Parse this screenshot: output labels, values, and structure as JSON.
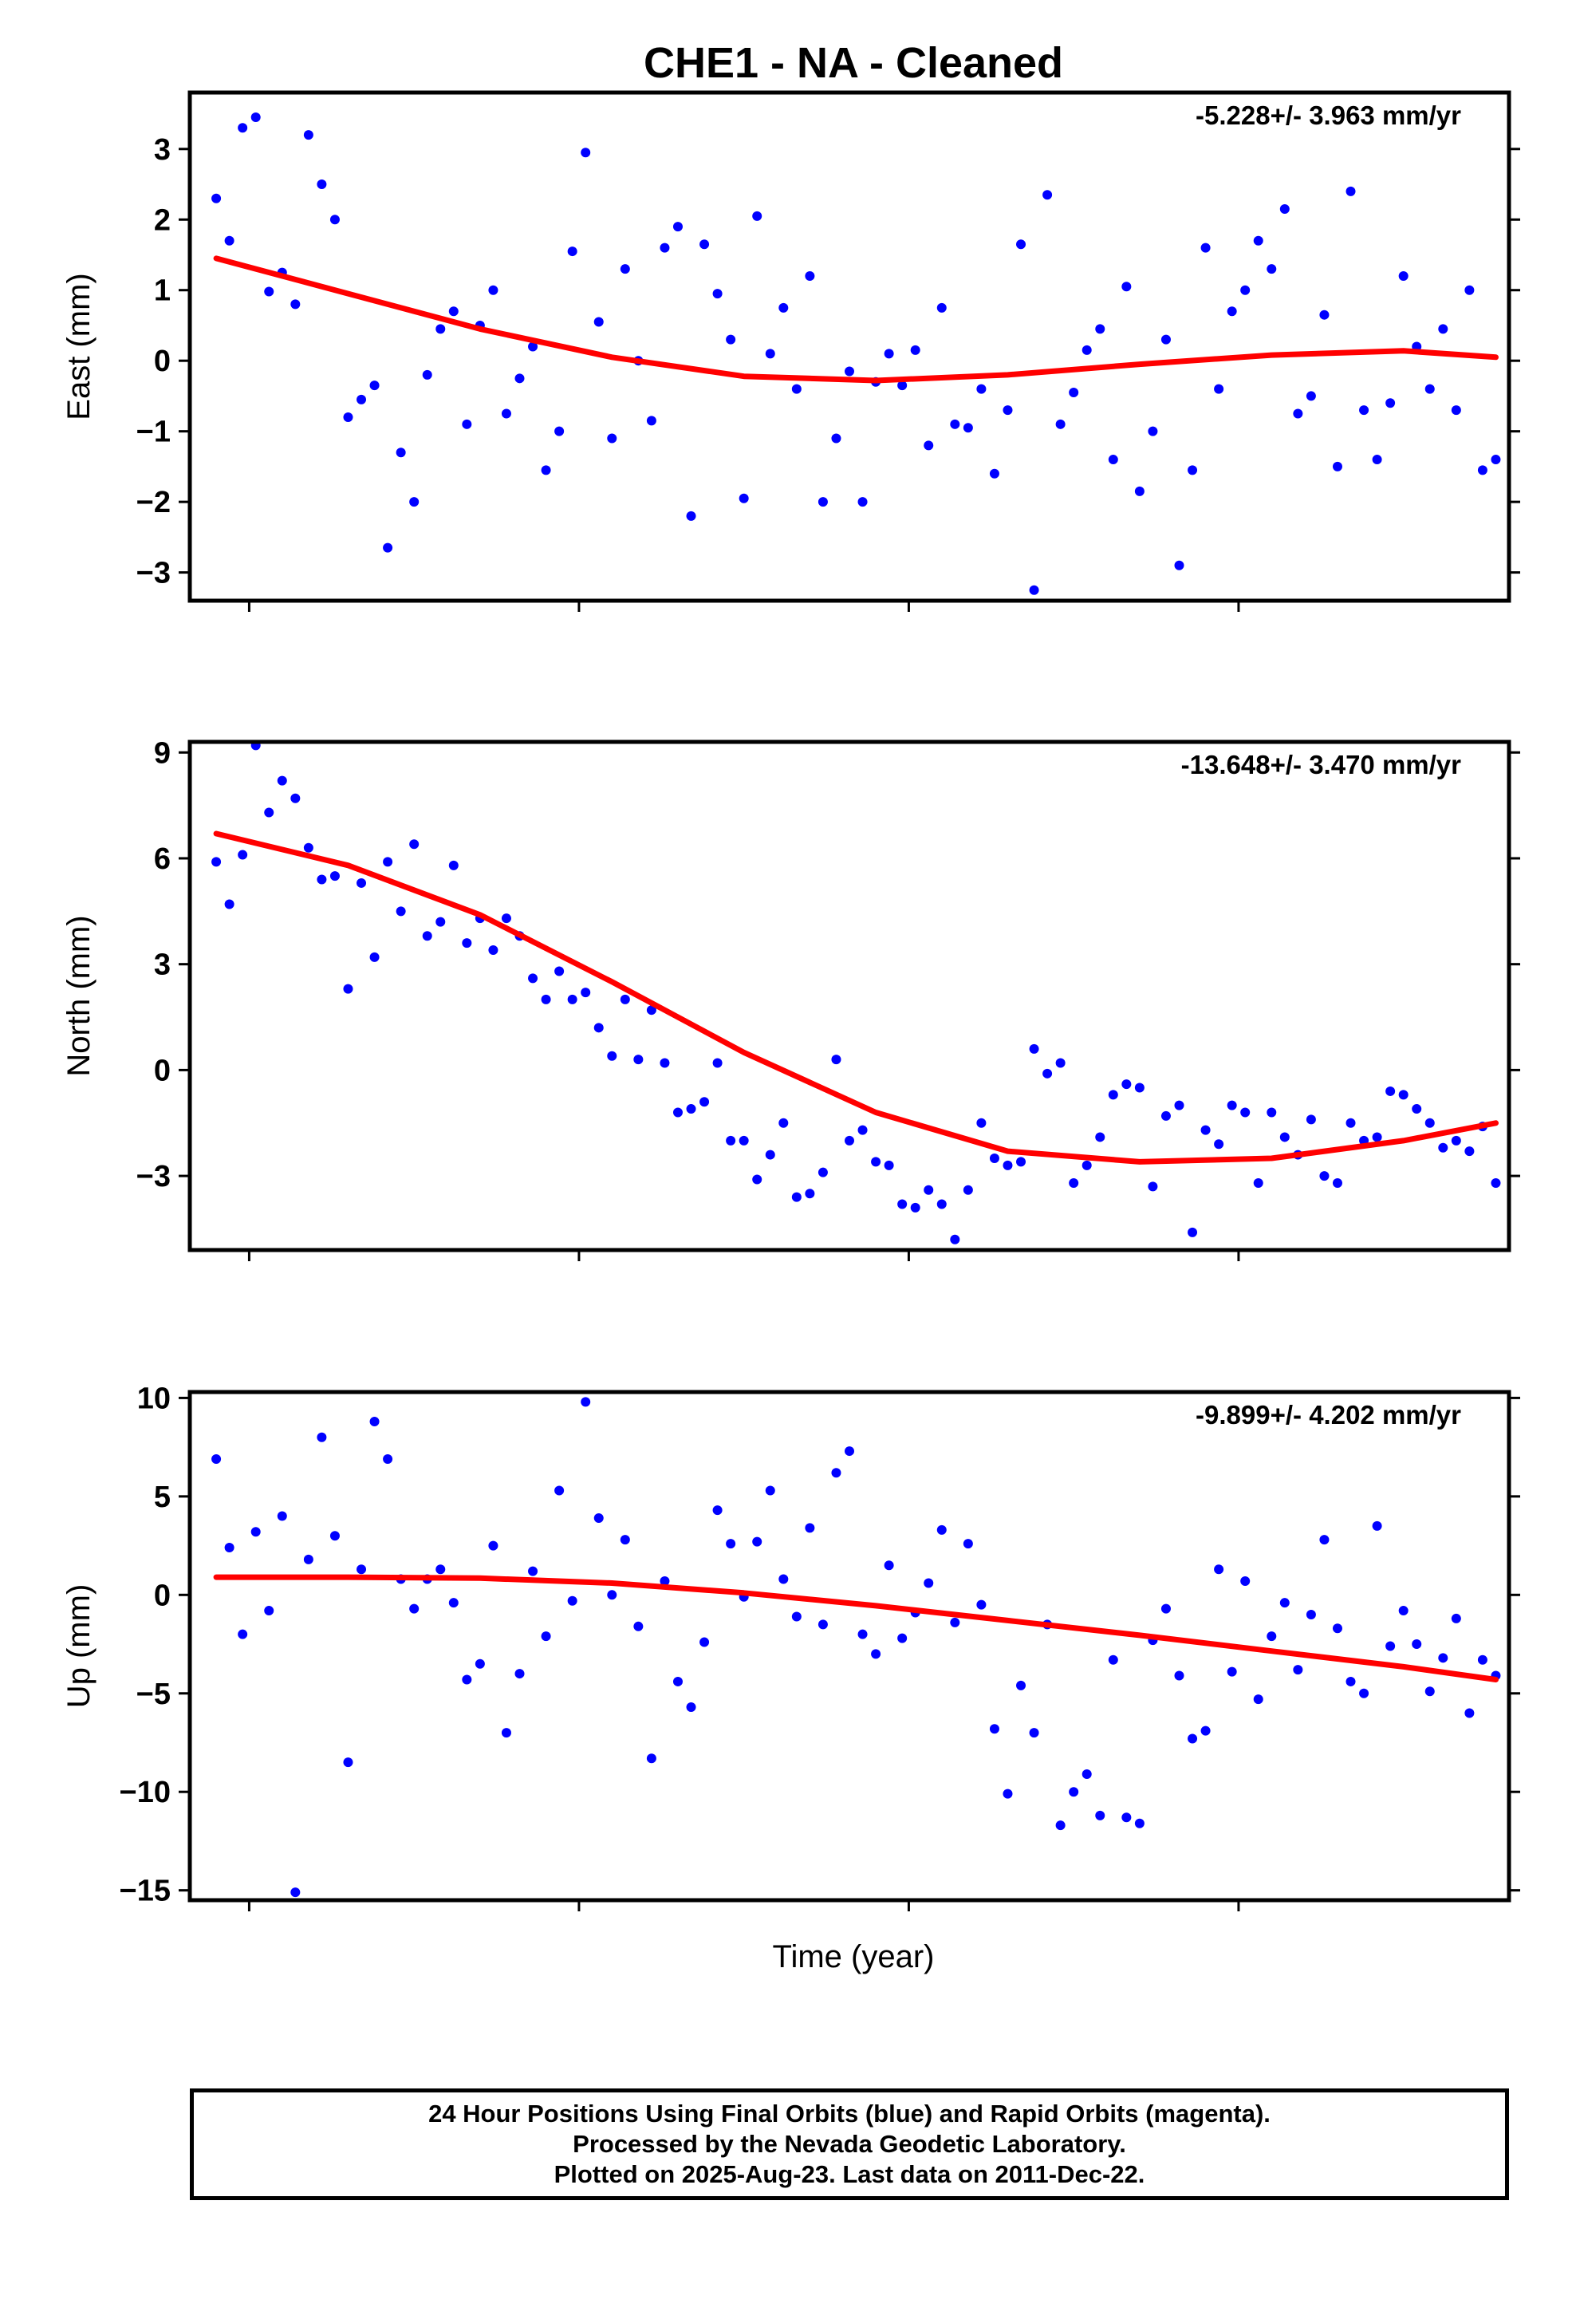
{
  "title": "CHE1  - NA - Cleaned",
  "xlabel": "Time (year)",
  "footer": {
    "line1": "24 Hour Positions Using Final Orbits (blue) and Rapid Orbits (magenta).",
    "line2": "Processed by the Nevada Geodetic Laboratory.",
    "line3": "Plotted on 2025-Aug-23. Last data on 2011-Dec-22."
  },
  "colors": {
    "points": "#0000ff",
    "fit": "#ff0000",
    "axes": "#000000"
  },
  "chart_data": [
    {
      "type": "scatter",
      "ylabel": "East (mm)",
      "rate": "-5.228+/- 3.963 mm/yr",
      "ylim": [
        -3.4,
        3.8
      ],
      "yticks": [
        -3,
        -2,
        -1,
        0,
        1,
        2,
        3
      ],
      "ytick_labels": [
        "−3",
        "−2",
        "−1",
        "0",
        "1",
        "2",
        "3"
      ],
      "x": [
        0.02,
        0.03,
        0.04,
        0.05,
        0.06,
        0.07,
        0.08,
        0.09,
        0.1,
        0.11,
        0.12,
        0.13,
        0.14,
        0.15,
        0.16,
        0.17,
        0.18,
        0.19,
        0.2,
        0.21,
        0.22,
        0.23,
        0.24,
        0.25,
        0.26,
        0.27,
        0.28,
        0.29,
        0.3,
        0.31,
        0.32,
        0.33,
        0.34,
        0.35,
        0.36,
        0.37,
        0.38,
        0.39,
        0.4,
        0.41,
        0.42,
        0.43,
        0.44,
        0.45,
        0.46,
        0.47,
        0.48,
        0.49,
        0.5,
        0.51,
        0.52,
        0.53,
        0.54,
        0.55,
        0.56,
        0.57,
        0.58,
        0.59,
        0.6,
        0.61,
        0.62,
        0.63,
        0.64,
        0.65,
        0.66,
        0.67,
        0.68,
        0.69,
        0.7,
        0.71,
        0.72,
        0.73,
        0.74,
        0.75,
        0.76,
        0.77,
        0.78,
        0.79,
        0.8,
        0.81,
        0.82,
        0.83,
        0.84,
        0.85,
        0.86,
        0.87,
        0.88,
        0.89,
        0.9,
        0.91,
        0.92,
        0.93,
        0.94,
        0.95,
        0.96,
        0.97,
        0.98,
        0.99
      ],
      "values": [
        2.3,
        1.7,
        3.3,
        3.45,
        0.98,
        1.25,
        0.8,
        3.2,
        2.5,
        2.0,
        -0.8,
        -0.55,
        -0.35,
        -2.65,
        -1.3,
        -2.0,
        -0.2,
        0.45,
        0.7,
        -0.9,
        0.5,
        1.0,
        -0.75,
        -0.25,
        0.2,
        -1.55,
        -1.0,
        1.55,
        2.95,
        0.55,
        -1.1,
        1.3,
        0.0,
        -0.85,
        1.6,
        1.9,
        -2.2,
        1.65,
        0.95,
        0.3,
        -1.95,
        2.05,
        0.1,
        0.75,
        -0.4,
        1.2,
        -2.0,
        -1.1,
        -0.15,
        -2.0,
        -0.3,
        0.1,
        -0.35,
        0.15,
        -1.2,
        0.75,
        -0.9,
        -0.95,
        -0.4,
        -1.6,
        -0.7,
        1.65,
        -3.25,
        2.35,
        -0.9,
        -0.45,
        0.15,
        0.45,
        -1.4,
        1.05,
        -1.85,
        -1.0,
        0.3,
        -2.9,
        -1.55,
        1.6,
        -0.4,
        0.7,
        1.0,
        1.7,
        1.3,
        2.15,
        -0.75,
        -0.5,
        0.65,
        -1.5,
        2.4,
        -0.7,
        -1.4,
        -0.6,
        1.2,
        0.2,
        -0.4,
        0.45,
        -0.7,
        1.0,
        -1.55,
        -1.4
      ],
      "fit": {
        "x": [
          0.02,
          0.12,
          0.22,
          0.32,
          0.42,
          0.52,
          0.62,
          0.72,
          0.82,
          0.92,
          0.99
        ],
        "y": [
          1.45,
          0.95,
          0.45,
          0.05,
          -0.22,
          -0.28,
          -0.2,
          -0.05,
          0.08,
          0.14,
          0.05
        ]
      }
    },
    {
      "type": "scatter",
      "ylabel": "North (mm)",
      "rate": "-13.648+/- 3.470 mm/yr",
      "ylim": [
        -5.1,
        9.3
      ],
      "yticks": [
        -3,
        0,
        3,
        6,
        9
      ],
      "ytick_labels": [
        "−3",
        "0",
        "3",
        "6",
        "9"
      ],
      "x": [
        0.02,
        0.03,
        0.04,
        0.05,
        0.06,
        0.07,
        0.08,
        0.09,
        0.1,
        0.11,
        0.12,
        0.13,
        0.14,
        0.15,
        0.16,
        0.17,
        0.18,
        0.19,
        0.2,
        0.21,
        0.22,
        0.23,
        0.24,
        0.25,
        0.26,
        0.27,
        0.28,
        0.29,
        0.3,
        0.31,
        0.32,
        0.33,
        0.34,
        0.35,
        0.36,
        0.37,
        0.38,
        0.39,
        0.4,
        0.41,
        0.42,
        0.43,
        0.44,
        0.45,
        0.46,
        0.47,
        0.48,
        0.49,
        0.5,
        0.51,
        0.52,
        0.53,
        0.54,
        0.55,
        0.56,
        0.57,
        0.58,
        0.59,
        0.6,
        0.61,
        0.62,
        0.63,
        0.64,
        0.65,
        0.66,
        0.67,
        0.68,
        0.69,
        0.7,
        0.71,
        0.72,
        0.73,
        0.74,
        0.75,
        0.76,
        0.77,
        0.78,
        0.79,
        0.8,
        0.81,
        0.82,
        0.83,
        0.84,
        0.85,
        0.86,
        0.87,
        0.88,
        0.89,
        0.9,
        0.91,
        0.92,
        0.93,
        0.94,
        0.95,
        0.96,
        0.97,
        0.98,
        0.99
      ],
      "values": [
        5.9,
        4.7,
        6.1,
        9.2,
        7.3,
        8.2,
        7.7,
        6.3,
        5.4,
        5.5,
        2.3,
        5.3,
        3.2,
        5.9,
        4.5,
        6.4,
        3.8,
        4.2,
        5.8,
        3.6,
        4.3,
        3.4,
        4.3,
        3.8,
        2.6,
        2.0,
        2.8,
        2.0,
        2.2,
        1.2,
        0.4,
        2.0,
        0.3,
        1.7,
        0.2,
        -1.2,
        -1.1,
        -0.9,
        0.2,
        -2.0,
        -2.0,
        -3.1,
        -2.4,
        -1.5,
        -3.6,
        -3.5,
        -2.9,
        0.3,
        -2.0,
        -1.7,
        -2.6,
        -2.7,
        -3.8,
        -3.9,
        -3.4,
        -3.8,
        -4.8,
        -3.4,
        -1.5,
        -2.5,
        -2.7,
        -2.6,
        0.6,
        -0.1,
        0.2,
        -3.2,
        -2.7,
        -1.9,
        -0.7,
        -0.4,
        -0.5,
        -3.3,
        -1.3,
        -1.0,
        -4.6,
        -1.7,
        -2.1,
        -1.0,
        -1.2,
        -3.2,
        -1.2,
        -1.9,
        -2.4,
        -1.4,
        -3.0,
        -3.2,
        -1.5,
        -2.0,
        -1.9,
        -0.6,
        -0.7,
        -1.1,
        -1.5,
        -2.2,
        -2.0,
        -2.3,
        -1.6,
        -3.2
      ],
      "fit": {
        "x": [
          0.02,
          0.12,
          0.22,
          0.32,
          0.42,
          0.52,
          0.62,
          0.72,
          0.82,
          0.92,
          0.99
        ],
        "y": [
          6.7,
          5.8,
          4.4,
          2.5,
          0.5,
          -1.2,
          -2.3,
          -2.6,
          -2.5,
          -2.0,
          -1.5
        ]
      }
    },
    {
      "type": "scatter",
      "ylabel": "Up (mm)",
      "rate": "-9.899+/- 4.202 mm/yr",
      "ylim": [
        -15.5,
        10.3
      ],
      "yticks": [
        -15,
        -10,
        -5,
        0,
        5,
        10
      ],
      "ytick_labels": [
        "−15",
        "−10",
        "−5",
        "0",
        "5",
        "10"
      ],
      "x": [
        0.02,
        0.03,
        0.04,
        0.05,
        0.06,
        0.07,
        0.08,
        0.09,
        0.1,
        0.11,
        0.12,
        0.13,
        0.14,
        0.15,
        0.16,
        0.17,
        0.18,
        0.19,
        0.2,
        0.21,
        0.22,
        0.23,
        0.24,
        0.25,
        0.26,
        0.27,
        0.28,
        0.29,
        0.3,
        0.31,
        0.32,
        0.33,
        0.34,
        0.35,
        0.36,
        0.37,
        0.38,
        0.39,
        0.4,
        0.41,
        0.42,
        0.43,
        0.44,
        0.45,
        0.46,
        0.47,
        0.48,
        0.49,
        0.5,
        0.51,
        0.52,
        0.53,
        0.54,
        0.55,
        0.56,
        0.57,
        0.58,
        0.59,
        0.6,
        0.61,
        0.62,
        0.63,
        0.64,
        0.65,
        0.66,
        0.67,
        0.68,
        0.69,
        0.7,
        0.71,
        0.72,
        0.73,
        0.74,
        0.75,
        0.76,
        0.77,
        0.78,
        0.79,
        0.8,
        0.81,
        0.82,
        0.83,
        0.84,
        0.85,
        0.86,
        0.87,
        0.88,
        0.89,
        0.9,
        0.91,
        0.92,
        0.93,
        0.94,
        0.95,
        0.96,
        0.97,
        0.98,
        0.99
      ],
      "values": [
        6.9,
        2.4,
        -2.0,
        3.2,
        -0.8,
        4.0,
        -15.1,
        1.8,
        8.0,
        3.0,
        -8.5,
        1.3,
        8.8,
        6.9,
        0.8,
        -0.7,
        0.8,
        1.3,
        -0.4,
        -4.3,
        -3.5,
        2.5,
        -7.0,
        -4.0,
        1.2,
        -2.1,
        5.3,
        -0.3,
        9.8,
        3.9,
        0.0,
        2.8,
        -1.6,
        -8.3,
        0.7,
        -4.4,
        -5.7,
        -2.4,
        4.3,
        2.6,
        -0.1,
        2.7,
        5.3,
        0.8,
        -1.1,
        3.4,
        -1.5,
        6.2,
        7.3,
        -2.0,
        -3.0,
        1.5,
        -2.2,
        -0.9,
        0.6,
        3.3,
        -1.4,
        2.6,
        -0.5,
        -6.8,
        -10.1,
        -4.6,
        -7.0,
        -1.5,
        -11.7,
        -10.0,
        -9.1,
        -11.2,
        -3.3,
        -11.3,
        -11.6,
        -2.3,
        -0.7,
        -4.1,
        -7.3,
        -6.9,
        1.3,
        -3.9,
        0.7,
        -5.3,
        -2.1,
        -0.4,
        -3.8,
        -1.0,
        2.8,
        -1.7,
        -4.4,
        -5.0,
        3.5,
        -2.6,
        -0.8,
        -2.5,
        -4.9,
        -3.2,
        -1.2,
        -6.0,
        -3.3,
        -4.1
      ],
      "fit": {
        "x": [
          0.02,
          0.12,
          0.22,
          0.32,
          0.42,
          0.52,
          0.62,
          0.72,
          0.82,
          0.92,
          0.99
        ],
        "y": [
          0.9,
          0.9,
          0.85,
          0.6,
          0.1,
          -0.55,
          -1.3,
          -2.05,
          -2.85,
          -3.65,
          -4.3
        ]
      }
    }
  ]
}
